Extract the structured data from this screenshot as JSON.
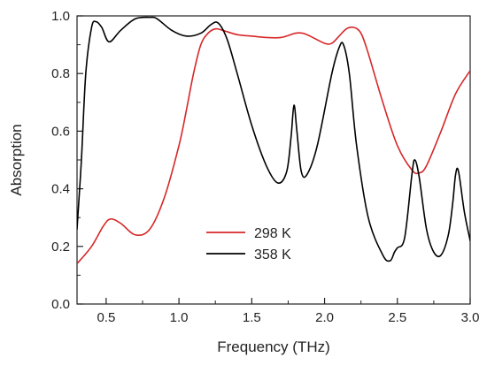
{
  "chart_data": {
    "type": "line",
    "xlabel": "Frequency (THz)",
    "ylabel": "Absorption",
    "xlim": [
      0.3,
      3.0
    ],
    "ylim": [
      0.0,
      1.0
    ],
    "x_ticks": [
      0.5,
      1.0,
      1.5,
      2.0,
      2.5,
      3.0
    ],
    "x_tick_labels": [
      "0.5",
      "1.0",
      "1.5",
      "2.0",
      "2.5",
      "3.0"
    ],
    "y_ticks": [
      0.0,
      0.2,
      0.4,
      0.6,
      0.8,
      1.0
    ],
    "y_tick_labels": [
      "0.0",
      "0.2",
      "0.4",
      "0.6",
      "0.8",
      "1.0"
    ],
    "grid": false,
    "legend_position": "center-left",
    "series": [
      {
        "name": "298 K",
        "color": "#d62728",
        "x": [
          0.3,
          0.4,
          0.48,
          0.53,
          0.6,
          0.7,
          0.8,
          0.9,
          1.0,
          1.05,
          1.1,
          1.15,
          1.2,
          1.25,
          1.3,
          1.4,
          1.5,
          1.6,
          1.7,
          1.8,
          1.85,
          1.9,
          2.0,
          2.05,
          2.1,
          2.15,
          2.2,
          2.25,
          2.3,
          2.4,
          2.5,
          2.6,
          2.65,
          2.7,
          2.8,
          2.9,
          3.0
        ],
        "values": [
          0.14,
          0.2,
          0.27,
          0.295,
          0.28,
          0.24,
          0.26,
          0.37,
          0.55,
          0.67,
          0.8,
          0.9,
          0.94,
          0.955,
          0.95,
          0.935,
          0.93,
          0.925,
          0.925,
          0.94,
          0.94,
          0.93,
          0.905,
          0.905,
          0.93,
          0.955,
          0.96,
          0.94,
          0.87,
          0.7,
          0.55,
          0.465,
          0.455,
          0.48,
          0.6,
          0.73,
          0.81
        ]
      },
      {
        "name": "358 K",
        "color": "#000000",
        "x": [
          0.3,
          0.33,
          0.36,
          0.4,
          0.43,
          0.47,
          0.52,
          0.6,
          0.7,
          0.8,
          0.85,
          0.95,
          1.05,
          1.15,
          1.22,
          1.27,
          1.33,
          1.4,
          1.5,
          1.6,
          1.68,
          1.74,
          1.77,
          1.79,
          1.81,
          1.84,
          1.88,
          1.95,
          2.05,
          2.1,
          2.13,
          2.17,
          2.22,
          2.3,
          2.4,
          2.45,
          2.48,
          2.5,
          2.55,
          2.6,
          2.62,
          2.65,
          2.7,
          2.75,
          2.8,
          2.85,
          2.88,
          2.9,
          2.92,
          2.96,
          3.0
        ],
        "values": [
          0.26,
          0.5,
          0.8,
          0.96,
          0.98,
          0.96,
          0.91,
          0.95,
          0.99,
          0.995,
          0.99,
          0.95,
          0.93,
          0.94,
          0.97,
          0.975,
          0.92,
          0.8,
          0.62,
          0.48,
          0.42,
          0.46,
          0.58,
          0.69,
          0.6,
          0.46,
          0.45,
          0.55,
          0.8,
          0.89,
          0.9,
          0.8,
          0.55,
          0.3,
          0.17,
          0.15,
          0.18,
          0.195,
          0.23,
          0.45,
          0.5,
          0.44,
          0.26,
          0.18,
          0.17,
          0.24,
          0.35,
          0.45,
          0.46,
          0.32,
          0.22
        ]
      }
    ]
  }
}
